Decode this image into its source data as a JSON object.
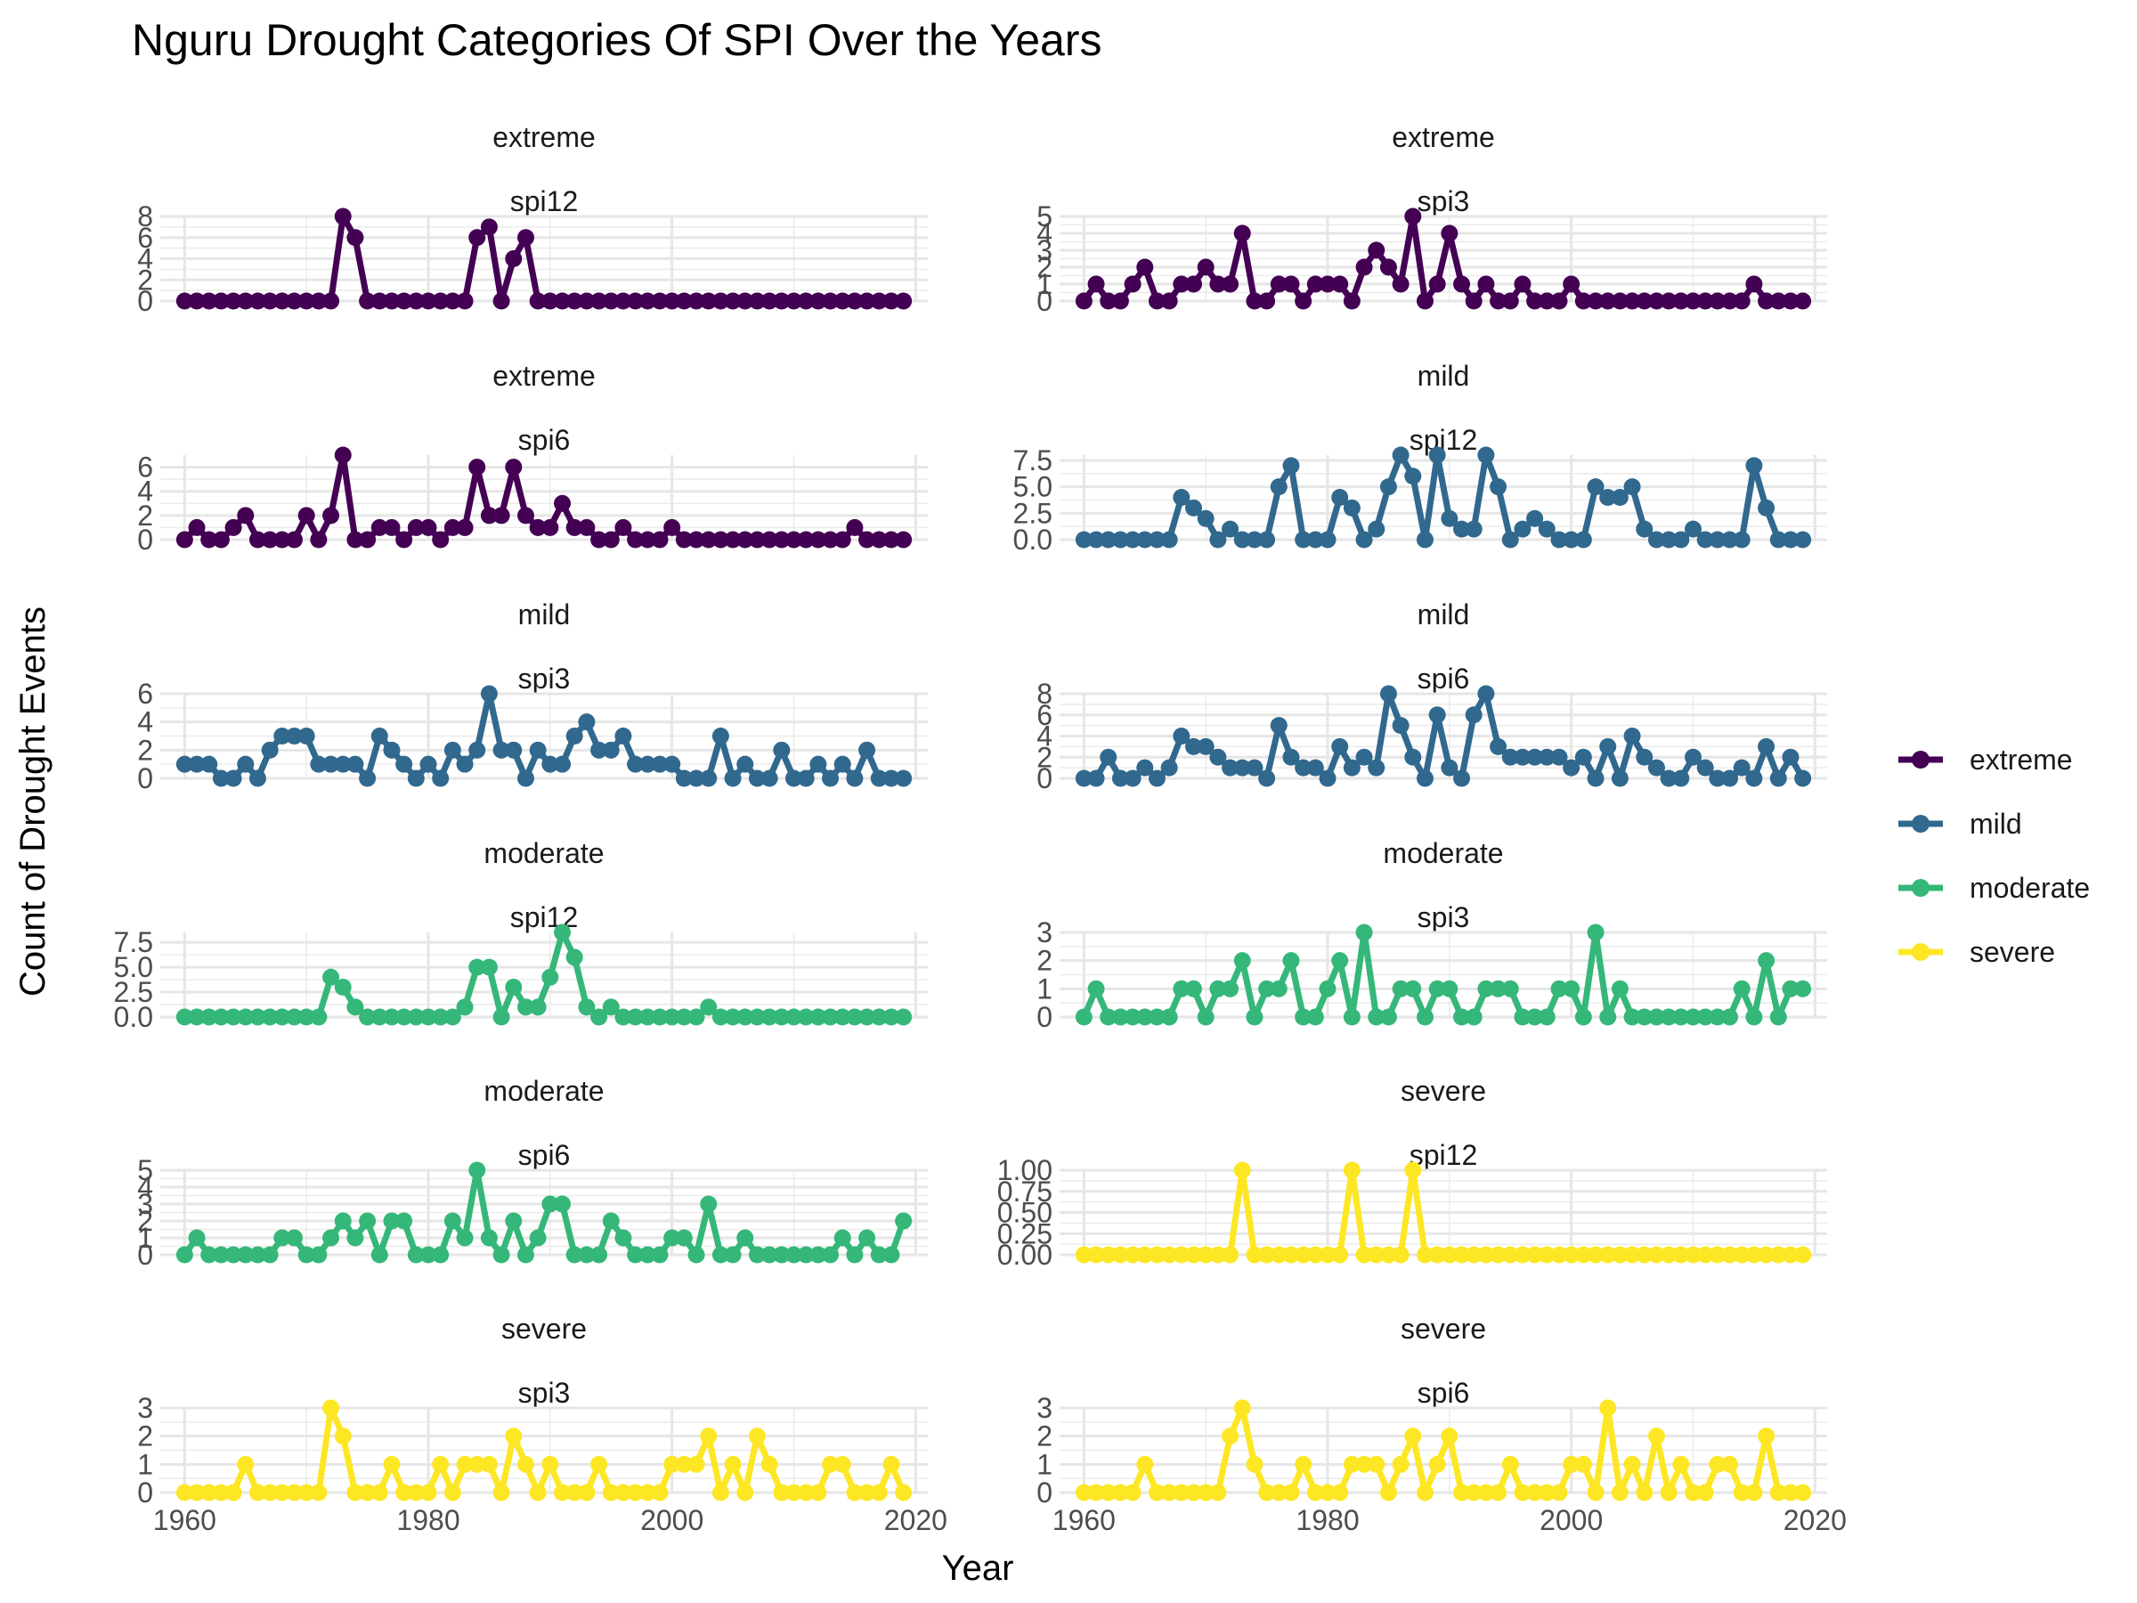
{
  "chart_data": {
    "type": "line",
    "title": "Nguru Drought Categories Of SPI Over the Years",
    "xlabel": "Year",
    "ylabel": "Count of Drought Events",
    "xlim": [
      1958,
      2021
    ],
    "x_ticks": [
      1960,
      1980,
      2000,
      2020
    ],
    "grid": true,
    "legend_position": "right",
    "legend": [
      {
        "name": "extreme",
        "color": "#440154"
      },
      {
        "name": "mild",
        "color": "#31688E"
      },
      {
        "name": "moderate",
        "color": "#35B779"
      },
      {
        "name": "severe",
        "color": "#FDE725"
      }
    ],
    "x": [
      1960,
      1961,
      1962,
      1963,
      1964,
      1965,
      1966,
      1967,
      1968,
      1969,
      1970,
      1971,
      1972,
      1973,
      1974,
      1975,
      1976,
      1977,
      1978,
      1979,
      1980,
      1981,
      1982,
      1983,
      1984,
      1985,
      1986,
      1987,
      1988,
      1989,
      1990,
      1991,
      1992,
      1993,
      1994,
      1995,
      1996,
      1997,
      1998,
      1999,
      2000,
      2001,
      2002,
      2003,
      2004,
      2005,
      2006,
      2007,
      2008,
      2009,
      2010,
      2011,
      2012,
      2013,
      2014,
      2015,
      2016,
      2017,
      2018,
      2019
    ],
    "panels": [
      {
        "category": "extreme",
        "spi": "spi12",
        "ylim": [
          0,
          8
        ],
        "yticks": [
          0,
          2,
          4,
          6,
          8
        ],
        "tick_labels": [
          "0",
          "2",
          "4",
          "6",
          "8"
        ],
        "values": [
          0,
          0,
          0,
          0,
          0,
          0,
          0,
          0,
          0,
          0,
          0,
          0,
          0,
          8,
          6,
          0,
          0,
          0,
          0,
          0,
          0,
          0,
          0,
          0,
          6,
          7,
          0,
          4,
          6,
          0,
          0,
          0,
          0,
          0,
          0,
          0,
          0,
          0,
          0,
          0,
          0,
          0,
          0,
          0,
          0,
          0,
          0,
          0,
          0,
          0,
          0,
          0,
          0,
          0,
          0,
          0,
          0,
          0,
          0,
          0
        ]
      },
      {
        "category": "extreme",
        "spi": "spi3",
        "ylim": [
          0,
          5
        ],
        "yticks": [
          0,
          1,
          2,
          3,
          4,
          5
        ],
        "tick_labels": [
          "0",
          "1",
          "2",
          "3",
          "4",
          "5"
        ],
        "values": [
          0,
          1,
          0,
          0,
          1,
          2,
          0,
          0,
          1,
          1,
          2,
          1,
          1,
          4,
          0,
          0,
          1,
          1,
          0,
          1,
          1,
          1,
          0,
          2,
          3,
          2,
          1,
          5,
          0,
          1,
          4,
          1,
          0,
          1,
          0,
          0,
          1,
          0,
          0,
          0,
          1,
          0,
          0,
          0,
          0,
          0,
          0,
          0,
          0,
          0,
          0,
          0,
          0,
          0,
          0,
          1,
          0,
          0,
          0,
          0
        ]
      },
      {
        "category": "extreme",
        "spi": "spi6",
        "ylim": [
          0,
          7
        ],
        "yticks": [
          0,
          2,
          4,
          6
        ],
        "tick_labels": [
          "0",
          "2",
          "4",
          "6"
        ],
        "values": [
          0,
          1,
          0,
          0,
          1,
          2,
          0,
          0,
          0,
          0,
          2,
          0,
          2,
          7,
          0,
          0,
          1,
          1,
          0,
          1,
          1,
          0,
          1,
          1,
          6,
          2,
          2,
          6,
          2,
          1,
          1,
          3,
          1,
          1,
          0,
          0,
          1,
          0,
          0,
          0,
          1,
          0,
          0,
          0,
          0,
          0,
          0,
          0,
          0,
          0,
          0,
          0,
          0,
          0,
          0,
          1,
          0,
          0,
          0,
          0
        ]
      },
      {
        "category": "mild",
        "spi": "spi12",
        "ylim": [
          0,
          8
        ],
        "yticks": [
          0,
          2.5,
          5,
          7.5
        ],
        "tick_labels": [
          "0.0",
          "2.5",
          "5.0",
          "7.5"
        ],
        "values": [
          0,
          0,
          0,
          0,
          0,
          0,
          0,
          0,
          4,
          3,
          2,
          0,
          1,
          0,
          0,
          0,
          5,
          7,
          0,
          0,
          0,
          4,
          3,
          0,
          1,
          5,
          8,
          6,
          0,
          8,
          2,
          1,
          1,
          8,
          5,
          0,
          1,
          2,
          1,
          0,
          0,
          0,
          5,
          4,
          4,
          5,
          1,
          0,
          0,
          0,
          1,
          0,
          0,
          0,
          0,
          7,
          3,
          0,
          0,
          0
        ]
      },
      {
        "category": "mild",
        "spi": "spi3",
        "ylim": [
          0,
          6
        ],
        "yticks": [
          0,
          2,
          4,
          6
        ],
        "tick_labels": [
          "0",
          "2",
          "4",
          "6"
        ],
        "values": [
          1,
          1,
          1,
          0,
          0,
          1,
          0,
          2,
          3,
          3,
          3,
          1,
          1,
          1,
          1,
          0,
          3,
          2,
          1,
          0,
          1,
          0,
          2,
          1,
          2,
          6,
          2,
          2,
          0,
          2,
          1,
          1,
          3,
          4,
          2,
          2,
          3,
          1,
          1,
          1,
          1,
          0,
          0,
          0,
          3,
          0,
          1,
          0,
          0,
          2,
          0,
          0,
          1,
          0,
          1,
          0,
          2,
          0,
          0,
          0
        ]
      },
      {
        "category": "mild",
        "spi": "spi6",
        "ylim": [
          0,
          8
        ],
        "yticks": [
          0,
          2,
          4,
          6,
          8
        ],
        "tick_labels": [
          "0",
          "2",
          "4",
          "6",
          "8"
        ],
        "values": [
          0,
          0,
          2,
          0,
          0,
          1,
          0,
          1,
          4,
          3,
          3,
          2,
          1,
          1,
          1,
          0,
          5,
          2,
          1,
          1,
          0,
          3,
          1,
          2,
          1,
          8,
          5,
          2,
          0,
          6,
          1,
          0,
          6,
          8,
          3,
          2,
          2,
          2,
          2,
          2,
          1,
          2,
          0,
          3,
          0,
          4,
          2,
          1,
          0,
          0,
          2,
          1,
          0,
          0,
          1,
          0,
          3,
          0,
          2,
          0
        ]
      },
      {
        "category": "moderate",
        "spi": "spi12",
        "ylim": [
          0,
          8.5
        ],
        "yticks": [
          0,
          2.5,
          5,
          7.5
        ],
        "tick_labels": [
          "0.0",
          "2.5",
          "5.0",
          "7.5"
        ],
        "values": [
          0,
          0,
          0,
          0,
          0,
          0,
          0,
          0,
          0,
          0,
          0,
          0,
          4,
          3,
          1,
          0,
          0,
          0,
          0,
          0,
          0,
          0,
          0,
          1,
          5,
          5,
          0,
          3,
          1,
          1,
          4,
          8.5,
          6,
          1,
          0,
          1,
          0,
          0,
          0,
          0,
          0,
          0,
          0,
          1,
          0,
          0,
          0,
          0,
          0,
          0,
          0,
          0,
          0,
          0,
          0,
          0,
          0,
          0,
          0,
          0
        ]
      },
      {
        "category": "moderate",
        "spi": "spi3",
        "ylim": [
          0,
          3
        ],
        "yticks": [
          0,
          1,
          2,
          3
        ],
        "tick_labels": [
          "0",
          "1",
          "2",
          "3"
        ],
        "values": [
          0,
          1,
          0,
          0,
          0,
          0,
          0,
          0,
          1,
          1,
          0,
          1,
          1,
          2,
          0,
          1,
          1,
          2,
          0,
          0,
          1,
          2,
          0,
          3,
          0,
          0,
          1,
          1,
          0,
          1,
          1,
          0,
          0,
          1,
          1,
          1,
          0,
          0,
          0,
          1,
          1,
          0,
          3,
          0,
          1,
          0,
          0,
          0,
          0,
          0,
          0,
          0,
          0,
          0,
          1,
          0,
          2,
          0,
          1,
          1
        ]
      },
      {
        "category": "moderate",
        "spi": "spi6",
        "ylim": [
          0,
          5
        ],
        "yticks": [
          0,
          1,
          2,
          3,
          4,
          5
        ],
        "tick_labels": [
          "0",
          "1",
          "2",
          "3",
          "4",
          "5"
        ],
        "values": [
          0,
          1,
          0,
          0,
          0,
          0,
          0,
          0,
          1,
          1,
          0,
          0,
          1,
          2,
          1,
          2,
          0,
          2,
          2,
          0,
          0,
          0,
          2,
          1,
          5,
          1,
          0,
          2,
          0,
          1,
          3,
          3,
          0,
          0,
          0,
          2,
          1,
          0,
          0,
          0,
          1,
          1,
          0,
          3,
          0,
          0,
          1,
          0,
          0,
          0,
          0,
          0,
          0,
          0,
          1,
          0,
          1,
          0,
          0,
          2
        ]
      },
      {
        "category": "severe",
        "spi": "spi12",
        "ylim": [
          0,
          1
        ],
        "yticks": [
          0,
          0.25,
          0.5,
          0.75,
          1
        ],
        "tick_labels": [
          "0.00",
          "0.25",
          "0.50",
          "0.75",
          "1.00"
        ],
        "values": [
          0,
          0,
          0,
          0,
          0,
          0,
          0,
          0,
          0,
          0,
          0,
          0,
          0,
          1,
          0,
          0,
          0,
          0,
          0,
          0,
          0,
          0,
          1,
          0,
          0,
          0,
          0,
          1,
          0,
          0,
          0,
          0,
          0,
          0,
          0,
          0,
          0,
          0,
          0,
          0,
          0,
          0,
          0,
          0,
          0,
          0,
          0,
          0,
          0,
          0,
          0,
          0,
          0,
          0,
          0,
          0,
          0,
          0,
          0,
          0
        ]
      },
      {
        "category": "severe",
        "spi": "spi3",
        "ylim": [
          0,
          3
        ],
        "yticks": [
          0,
          1,
          2,
          3
        ],
        "tick_labels": [
          "0",
          "1",
          "2",
          "3"
        ],
        "values": [
          0,
          0,
          0,
          0,
          0,
          1,
          0,
          0,
          0,
          0,
          0,
          0,
          3,
          2,
          0,
          0,
          0,
          1,
          0,
          0,
          0,
          1,
          0,
          1,
          1,
          1,
          0,
          2,
          1,
          0,
          1,
          0,
          0,
          0,
          1,
          0,
          0,
          0,
          0,
          0,
          1,
          1,
          1,
          2,
          0,
          1,
          0,
          2,
          1,
          0,
          0,
          0,
          0,
          1,
          1,
          0,
          0,
          0,
          1,
          0
        ]
      },
      {
        "category": "severe",
        "spi": "spi6",
        "ylim": [
          0,
          3
        ],
        "yticks": [
          0,
          1,
          2,
          3
        ],
        "tick_labels": [
          "0",
          "1",
          "2",
          "3"
        ],
        "values": [
          0,
          0,
          0,
          0,
          0,
          1,
          0,
          0,
          0,
          0,
          0,
          0,
          2,
          3,
          1,
          0,
          0,
          0,
          1,
          0,
          0,
          0,
          1,
          1,
          1,
          0,
          1,
          2,
          0,
          1,
          2,
          0,
          0,
          0,
          0,
          1,
          0,
          0,
          0,
          0,
          1,
          1,
          0,
          3,
          0,
          1,
          0,
          2,
          0,
          1,
          0,
          0,
          1,
          1,
          0,
          0,
          2,
          0,
          0,
          0
        ]
      }
    ]
  }
}
